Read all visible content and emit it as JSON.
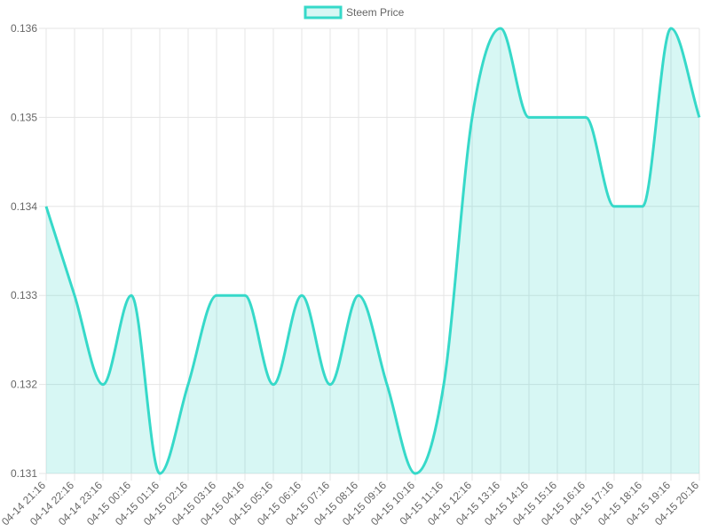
{
  "chart_data": {
    "type": "area",
    "legend": {
      "position": "top",
      "label": "Steem Price"
    },
    "series": [
      {
        "name": "Steem Price",
        "color": "#36d9c9",
        "fill": "rgba(54,217,201,0.2)",
        "values": [
          0.134,
          0.133,
          0.132,
          0.133,
          0.131,
          0.132,
          0.133,
          0.133,
          0.132,
          0.133,
          0.132,
          0.133,
          0.132,
          0.131,
          0.132,
          0.135,
          0.136,
          0.135,
          0.135,
          0.135,
          0.134,
          0.134,
          0.136,
          0.135
        ]
      }
    ],
    "categories": [
      "04-14 21:16",
      "04-14 22:16",
      "04-14 23:16",
      "04-15 00:16",
      "04-15 01:16",
      "04-15 02:16",
      "04-15 03:16",
      "04-15 04:16",
      "04-15 05:16",
      "04-15 06:16",
      "04-15 07:16",
      "04-15 08:16",
      "04-15 09:16",
      "04-15 10:16",
      "04-15 11:16",
      "04-15 12:16",
      "04-15 13:16",
      "04-15 14:16",
      "04-15 15:16",
      "04-15 16:16",
      "04-15 17:16",
      "04-15 18:16",
      "04-15 19:16",
      "04-15 20:16"
    ],
    "ylim": [
      0.131,
      0.136
    ],
    "yticks": [
      "0.131",
      "0.132",
      "0.133",
      "0.134",
      "0.135",
      "0.136"
    ],
    "grid": true
  }
}
